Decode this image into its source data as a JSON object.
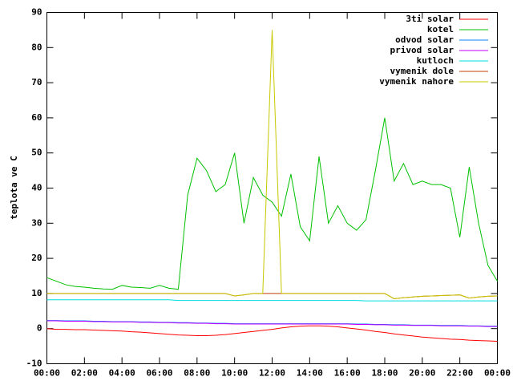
{
  "chart_data": {
    "type": "line",
    "y_label": "teplota ve C",
    "x": [
      0,
      0.5,
      1,
      1.5,
      2,
      2.5,
      3,
      3.5,
      4,
      4.5,
      5,
      5.5,
      6,
      6.5,
      7,
      7.5,
      8,
      8.5,
      9,
      9.5,
      10,
      10.5,
      11,
      11.5,
      12,
      12.5,
      13,
      13.5,
      14,
      14.5,
      15,
      15.5,
      16,
      16.5,
      17,
      17.5,
      18,
      18.5,
      19,
      19.5,
      20,
      20.5,
      21,
      21.5,
      22,
      22.5,
      23,
      23.5,
      24
    ],
    "xlim": [
      0,
      24
    ],
    "xticks": [
      {
        "value": 0,
        "label": "00:00"
      },
      {
        "value": 2,
        "label": "02:00"
      },
      {
        "value": 4,
        "label": "04:00"
      },
      {
        "value": 6,
        "label": "06:00"
      },
      {
        "value": 8,
        "label": "08:00"
      },
      {
        "value": 10,
        "label": "10:00"
      },
      {
        "value": 12,
        "label": "12:00"
      },
      {
        "value": 14,
        "label": "14:00"
      },
      {
        "value": 16,
        "label": "16:00"
      },
      {
        "value": 18,
        "label": "18:00"
      },
      {
        "value": 20,
        "label": "20:00"
      },
      {
        "value": 22,
        "label": "22:00"
      },
      {
        "value": 24,
        "label": "00:00"
      }
    ],
    "ylim": [
      -10,
      90
    ],
    "yticks": [
      -10,
      0,
      10,
      20,
      30,
      40,
      50,
      60,
      70,
      80,
      90
    ],
    "legend": "top-right",
    "series": [
      {
        "name": "3ti solar",
        "color": "#ff0000",
        "values": [
          0,
          -0.2,
          -0.2,
          -0.3,
          -0.3,
          -0.4,
          -0.5,
          -0.6,
          -0.7,
          -0.9,
          -1.0,
          -1.2,
          -1.4,
          -1.6,
          -1.8,
          -1.9,
          -2.0,
          -2.0,
          -1.9,
          -1.7,
          -1.4,
          -1.1,
          -0.8,
          -0.5,
          -0.2,
          0.2,
          0.5,
          0.7,
          0.8,
          0.8,
          0.7,
          0.5,
          0.2,
          -0.1,
          -0.4,
          -0.8,
          -1.1,
          -1.5,
          -1.8,
          -2.1,
          -2.4,
          -2.6,
          -2.8,
          -3.0,
          -3.1,
          -3.3,
          -3.4,
          -3.5,
          -3.6
        ]
      },
      {
        "name": "kotel",
        "color": "#00c000",
        "values": [
          14.5,
          13.5,
          12.5,
          12,
          11.8,
          11.5,
          11.3,
          11.2,
          12.3,
          11.8,
          11.7,
          11.5,
          12.3,
          11.5,
          11.2,
          38,
          48.5,
          45,
          39,
          41,
          50,
          30,
          43,
          38,
          36,
          32,
          44,
          29,
          25,
          49,
          30,
          35,
          30,
          28,
          31,
          45,
          60,
          42,
          47,
          41,
          42,
          41,
          41,
          40,
          26,
          46,
          30,
          18,
          13.5
        ]
      },
      {
        "name": "odvod solar",
        "color": "#0080ff",
        "values": [
          2.3,
          2.3,
          2.2,
          2.2,
          2.2,
          2.1,
          2.1,
          2.0,
          2.0,
          2.0,
          1.9,
          1.9,
          1.8,
          1.8,
          1.7,
          1.7,
          1.6,
          1.6,
          1.5,
          1.5,
          1.4,
          1.4,
          1.4,
          1.4,
          1.4,
          1.4,
          1.4,
          1.4,
          1.4,
          1.4,
          1.4,
          1.4,
          1.4,
          1.3,
          1.3,
          1.2,
          1.2,
          1.1,
          1.1,
          1.0,
          1.0,
          1.0,
          0.9,
          0.9,
          0.9,
          0.8,
          0.8,
          0.7,
          0.7
        ]
      },
      {
        "name": "privod solar",
        "color": "#c000ff",
        "values": [
          2.2,
          2.2,
          2.1,
          2.1,
          2.1,
          2.0,
          2.0,
          1.9,
          1.9,
          1.9,
          1.8,
          1.8,
          1.7,
          1.7,
          1.6,
          1.6,
          1.5,
          1.5,
          1.4,
          1.4,
          1.3,
          1.3,
          1.3,
          1.3,
          1.3,
          1.3,
          1.3,
          1.3,
          1.3,
          1.3,
          1.3,
          1.3,
          1.3,
          1.2,
          1.2,
          1.1,
          1.1,
          1.0,
          1.0,
          0.9,
          0.9,
          0.9,
          0.8,
          0.8,
          0.8,
          0.7,
          0.7,
          0.6,
          0.6
        ]
      },
      {
        "name": "kutloch",
        "color": "#00dddd",
        "values": [
          8.2,
          8.2,
          8.2,
          8.2,
          8.2,
          8.2,
          8.2,
          8.2,
          8.2,
          8.2,
          8.2,
          8.2,
          8.2,
          8.2,
          8.0,
          8.0,
          8.0,
          8.0,
          8.0,
          8.0,
          8.0,
          8.0,
          8.0,
          8.0,
          8.0,
          8.0,
          8.0,
          8.0,
          8.0,
          8.0,
          8.0,
          8.0,
          8.0,
          8.0,
          7.9,
          7.9,
          7.9,
          7.9,
          7.9,
          7.9,
          7.9,
          7.9,
          7.9,
          7.9,
          7.9,
          7.9,
          7.9,
          7.9,
          7.9
        ]
      },
      {
        "name": "vymenik dole",
        "color": "#c04000",
        "values": [
          10,
          10,
          10,
          10,
          10,
          10,
          10,
          10,
          10,
          10,
          10,
          10,
          10,
          10,
          10,
          10,
          10,
          10,
          10,
          10,
          9.3,
          9.6,
          10,
          10,
          10,
          10,
          10,
          10,
          10,
          10,
          10,
          10,
          10,
          10,
          10,
          10,
          10,
          8.5,
          8.8,
          9.0,
          9.2,
          9.3,
          9.4,
          9.5,
          9.6,
          8.7,
          9.0,
          9.2,
          9.3
        ]
      },
      {
        "name": "vymenik nahore",
        "color": "#c8c800",
        "values": [
          10,
          10,
          10,
          10,
          10,
          10,
          10,
          10,
          10,
          10,
          10,
          10,
          10,
          10,
          10,
          10,
          10,
          10,
          10,
          10,
          9.3,
          9.6,
          10,
          10,
          85,
          10,
          10,
          10,
          10,
          10,
          10,
          10,
          10,
          10,
          10,
          10,
          10,
          8.5,
          8.8,
          9.0,
          9.2,
          9.3,
          9.4,
          9.5,
          9.6,
          8.7,
          9.0,
          9.2,
          9.3
        ]
      }
    ]
  }
}
